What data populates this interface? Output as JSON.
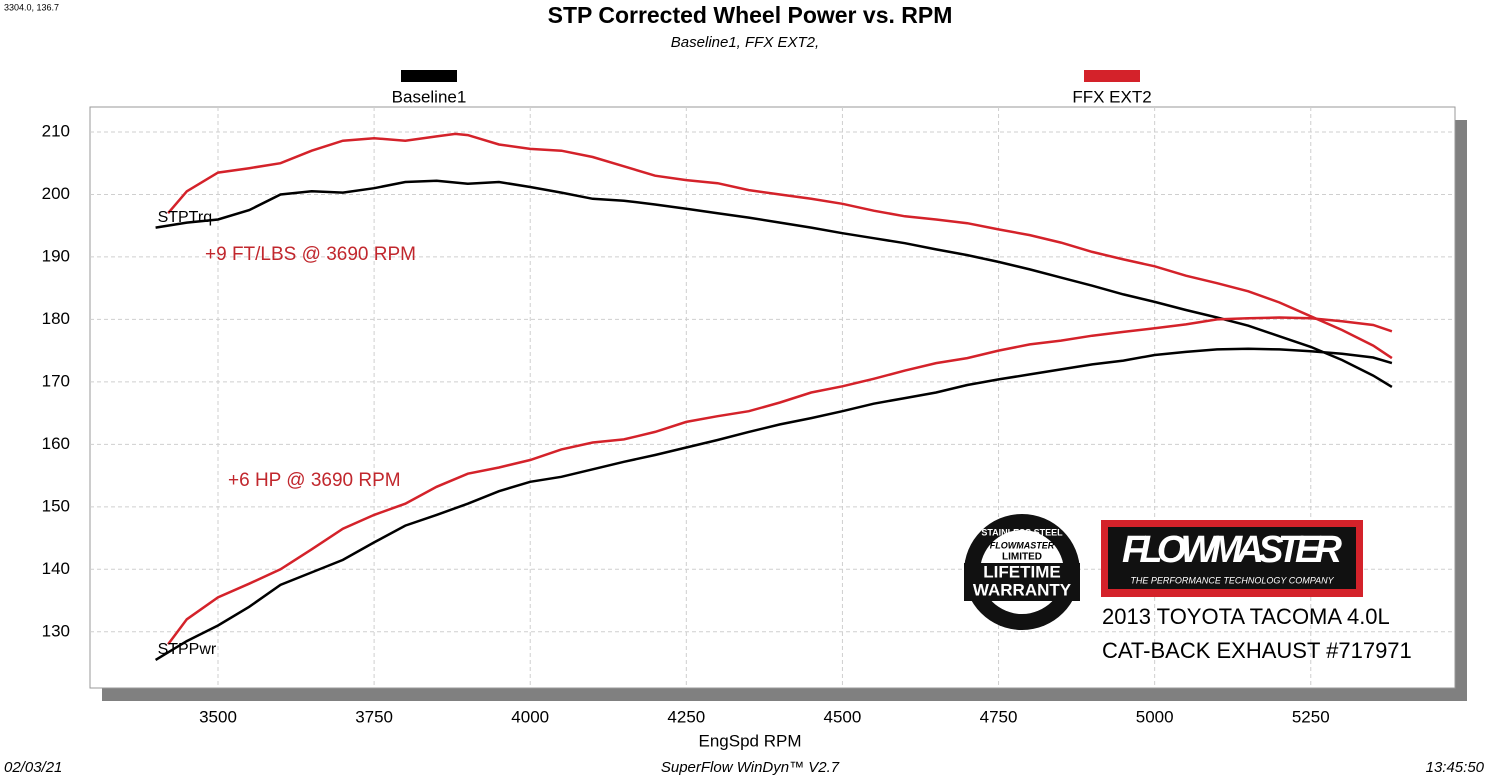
{
  "chart_data": {
    "type": "line",
    "corner_note": "3304.0, 136.7",
    "title": "STP Corrected Wheel Power vs. RPM",
    "subtitle": "Baseline1, FFX EXT2,",
    "x_label": "EngSpd  RPM",
    "date": "02/03/21",
    "software": "SuperFlow WinDyn™ V2.7",
    "time": "13:45:50",
    "xlim": [
      3295,
      5481
    ],
    "ylim": [
      121,
      214
    ],
    "xticks": [
      3500,
      3750,
      4000,
      4250,
      4500,
      4750,
      5000,
      5250
    ],
    "yticks": [
      130,
      140,
      150,
      160,
      170,
      180,
      190,
      200,
      210
    ],
    "grid": true,
    "runs": [
      {
        "name": "Baseline1",
        "color": "#000000"
      },
      {
        "name": "FFX EXT2",
        "color": "#d4222a"
      }
    ],
    "measures": [
      "STPTrq",
      "STPPwr"
    ],
    "annotations": [
      "+9 FT/LBS @ 3690 RPM",
      "+6 HP @ 3690 RPM"
    ],
    "series": [
      {
        "run": 0,
        "measure": 0,
        "x": [
          3400,
          3450,
          3500,
          3550,
          3600,
          3650,
          3700,
          3750,
          3800,
          3850,
          3900,
          3950,
          4000,
          4050,
          4100,
          4150,
          4200,
          4250,
          4300,
          4350,
          4400,
          4450,
          4500,
          4550,
          4600,
          4650,
          4700,
          4750,
          4800,
          4850,
          4900,
          4950,
          5000,
          5050,
          5100,
          5150,
          5200,
          5250,
          5300,
          5350,
          5380
        ],
        "values": [
          194.7,
          195.5,
          196,
          197.5,
          200,
          200.5,
          200.3,
          201,
          202,
          202.2,
          201.7,
          202,
          201.2,
          200.3,
          199.3,
          199,
          198.4,
          197.7,
          197,
          196.3,
          195.5,
          194.7,
          193.8,
          193,
          192.2,
          191.2,
          190.3,
          189.2,
          188,
          186.7,
          185.4,
          184,
          182.8,
          181.5,
          180.3,
          179,
          177.3,
          175.6,
          173.5,
          171,
          169.2
        ]
      },
      {
        "run": 1,
        "measure": 0,
        "x": [
          3420,
          3450,
          3500,
          3550,
          3600,
          3650,
          3700,
          3750,
          3800,
          3850,
          3880,
          3900,
          3950,
          4000,
          4050,
          4100,
          4150,
          4200,
          4250,
          4300,
          4350,
          4400,
          4450,
          4500,
          4550,
          4600,
          4650,
          4700,
          4750,
          4800,
          4850,
          4900,
          4950,
          5000,
          5050,
          5100,
          5150,
          5200,
          5250,
          5300,
          5350,
          5380
        ],
        "values": [
          197,
          200.5,
          203.5,
          204.2,
          205,
          207,
          208.6,
          209,
          208.6,
          209.3,
          209.7,
          209.5,
          208,
          207.3,
          207,
          206,
          204.5,
          203,
          202.3,
          201.8,
          200.7,
          200,
          199.3,
          198.5,
          197.4,
          196.5,
          196,
          195.4,
          194.4,
          193.5,
          192.3,
          190.8,
          189.6,
          188.5,
          187,
          185.8,
          184.5,
          182.7,
          180.5,
          178.3,
          175.8,
          173.8
        ]
      },
      {
        "run": 0,
        "measure": 1,
        "x": [
          3400,
          3450,
          3500,
          3550,
          3600,
          3650,
          3700,
          3750,
          3800,
          3850,
          3900,
          3950,
          4000,
          4050,
          4100,
          4150,
          4200,
          4250,
          4300,
          4350,
          4400,
          4450,
          4500,
          4550,
          4600,
          4650,
          4700,
          4750,
          4800,
          4850,
          4900,
          4950,
          5000,
          5050,
          5100,
          5150,
          5200,
          5250,
          5300,
          5350,
          5380
        ],
        "values": [
          125.5,
          128.5,
          131,
          134,
          137.5,
          139.5,
          141.5,
          144.3,
          147,
          148.7,
          150.5,
          152.5,
          154,
          154.8,
          156,
          157.2,
          158.3,
          159.5,
          160.7,
          162,
          163.2,
          164.2,
          165.3,
          166.5,
          167.4,
          168.3,
          169.5,
          170.4,
          171.2,
          172,
          172.8,
          173.4,
          174.3,
          174.8,
          175.2,
          175.3,
          175.2,
          174.9,
          174.5,
          173.9,
          173
        ]
      },
      {
        "run": 1,
        "measure": 1,
        "x": [
          3420,
          3450,
          3500,
          3550,
          3600,
          3650,
          3700,
          3750,
          3800,
          3850,
          3900,
          3950,
          4000,
          4050,
          4100,
          4150,
          4200,
          4250,
          4300,
          4350,
          4400,
          4450,
          4500,
          4550,
          4600,
          4650,
          4700,
          4750,
          4800,
          4850,
          4900,
          4950,
          5000,
          5050,
          5100,
          5150,
          5200,
          5250,
          5300,
          5350,
          5380
        ],
        "values": [
          128,
          132,
          135.5,
          137.7,
          140,
          143.2,
          146.5,
          148.7,
          150.5,
          153.2,
          155.3,
          156.3,
          157.5,
          159.2,
          160.3,
          160.8,
          162,
          163.6,
          164.5,
          165.3,
          166.7,
          168.3,
          169.3,
          170.5,
          171.8,
          173,
          173.8,
          175,
          176,
          176.6,
          177.4,
          178,
          178.6,
          179.2,
          180,
          180.2,
          180.3,
          180.2,
          179.7,
          179.1,
          178.1
        ]
      }
    ]
  },
  "branding": {
    "badge": [
      "STAINLESS STEEL",
      "FLOWMASTER",
      "LIMITED",
      "LIFETIME",
      "WARRANTY"
    ],
    "logo": "FLOWMASTER",
    "logo_tagline": "THE PERFORMANCE TECHNOLOGY COMPANY",
    "vehicle": "2013 TOYOTA TACOMA 4.0L",
    "product": "CAT-BACK EXHAUST #717971"
  }
}
